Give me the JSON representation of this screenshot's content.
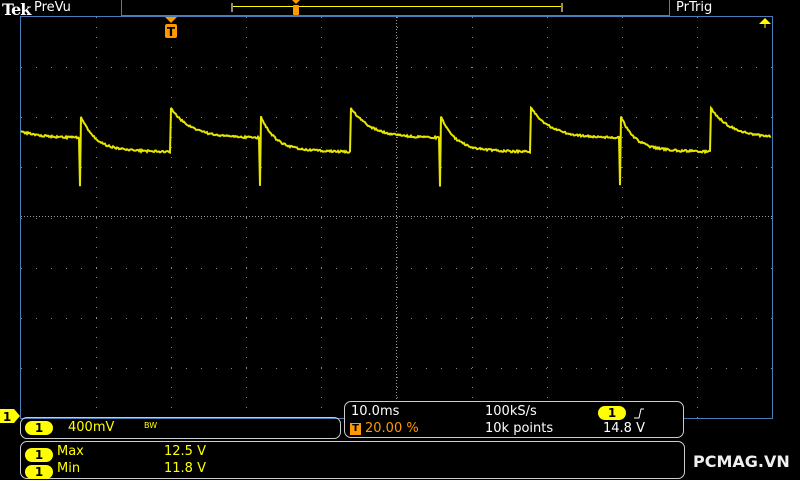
{
  "header": {
    "brand": "Tek",
    "mode": "PreVu",
    "trigger_status": "PrTrig"
  },
  "colors": {
    "channel1": "#ffff00",
    "trigger": "#ff9900",
    "frame": "#4a7db8"
  },
  "channel": {
    "number": "1",
    "scale": "400mV",
    "bw_label": "BW"
  },
  "measurements": [
    {
      "channel": "1",
      "name": "Max",
      "value": "12.5 V"
    },
    {
      "channel": "1",
      "name": "Min",
      "value": "11.8 V"
    }
  ],
  "horizontal": {
    "time_per_div": "10.0ms",
    "trigger_position": "20.00 %",
    "sample_rate": "100kS/s",
    "record_length": "10k points"
  },
  "trigger": {
    "source": "1",
    "slope": "rising-edge-icon",
    "level": "14.8 V",
    "marker": "T"
  },
  "watermark": "PCMAG.VN"
}
